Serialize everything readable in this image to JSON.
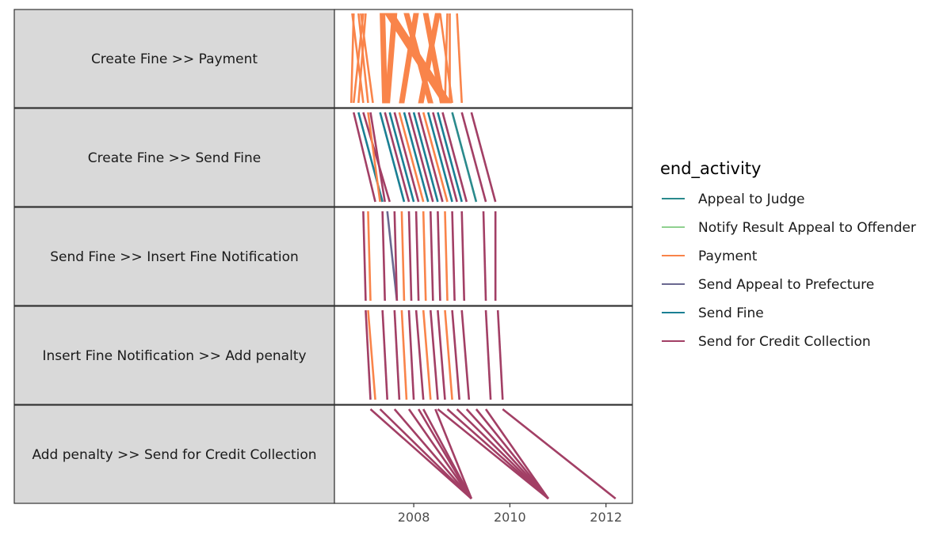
{
  "chart_data": {
    "type": "line",
    "chart_kind": "dotted-chart-segments",
    "title": "",
    "xlabel": "",
    "ylabel": "",
    "xlim": [
      2006.35,
      2012.55
    ],
    "x_ticks": [
      2008,
      2010,
      2012
    ],
    "x_tick_labels": [
      "2008",
      "2010",
      "2012"
    ],
    "grid": false,
    "facet_position": "left",
    "legend": {
      "title": "end_activity",
      "position": "right",
      "entries": [
        {
          "label": "Appeal to Judge",
          "color": "#2a8a8c"
        },
        {
          "label": "Notify Result Appeal to Offender",
          "color": "#8fd18f"
        },
        {
          "label": "Payment",
          "color": "#f9844a"
        },
        {
          "label": "Send Appeal to Prefecture",
          "color": "#6a6890"
        },
        {
          "label": "Send Fine",
          "color": "#1a7f94"
        },
        {
          "label": "Send for Credit Collection",
          "color": "#a23f65"
        }
      ]
    },
    "facets": [
      {
        "label": "Create Fine >> Payment",
        "segments": [
          {
            "x0": 2006.75,
            "x1": 2006.7,
            "series": "Payment"
          },
          {
            "x0": 2006.85,
            "x1": 2007.05,
            "series": "Payment"
          },
          {
            "x0": 2006.9,
            "x1": 2007.15,
            "series": "Payment"
          },
          {
            "x0": 2006.95,
            "x1": 2006.75,
            "series": "Payment"
          },
          {
            "x0": 2007.0,
            "x1": 2006.85,
            "series": "Payment"
          },
          {
            "x0": 2006.72,
            "x1": 2006.95,
            "series": "Payment"
          },
          {
            "x0": 2007.3,
            "x1": 2007.35,
            "series": "Payment",
            "dense": true
          },
          {
            "x0": 2007.4,
            "x1": 2008.6,
            "series": "Payment",
            "dense": true
          },
          {
            "x0": 2007.55,
            "x1": 2007.4,
            "series": "Payment",
            "dense": true
          },
          {
            "x0": 2007.8,
            "x1": 2008.3,
            "series": "Payment",
            "dense": true
          },
          {
            "x0": 2008.0,
            "x1": 2007.7,
            "series": "Payment",
            "dense": true
          },
          {
            "x0": 2008.2,
            "x1": 2008.55,
            "series": "Payment",
            "dense": true
          },
          {
            "x0": 2008.45,
            "x1": 2008.1,
            "series": "Payment",
            "dense": true
          },
          {
            "x0": 2008.55,
            "x1": 2008.8,
            "series": "Payment"
          },
          {
            "x0": 2008.7,
            "x1": 2008.65,
            "series": "Payment"
          },
          {
            "x0": 2008.75,
            "x1": 2008.75,
            "series": "Payment"
          },
          {
            "x0": 2008.9,
            "x1": 2009.0,
            "series": "Payment"
          }
        ]
      },
      {
        "label": "Create Fine >> Send Fine",
        "segments": [
          {
            "x0": 2006.75,
            "x1": 2007.2,
            "series": "Send for Credit Collection"
          },
          {
            "x0": 2006.85,
            "x1": 2007.35,
            "series": "Send Fine"
          },
          {
            "x0": 2006.95,
            "x1": 2007.5,
            "series": "Send for Credit Collection"
          },
          {
            "x0": 2007.05,
            "x1": 2007.3,
            "series": "Payment"
          },
          {
            "x0": 2007.1,
            "x1": 2007.4,
            "series": "Send for Credit Collection"
          },
          {
            "x0": 2007.3,
            "x1": 2007.8,
            "series": "Send Fine"
          },
          {
            "x0": 2007.4,
            "x1": 2007.9,
            "series": "Send for Credit Collection"
          },
          {
            "x0": 2007.5,
            "x1": 2008.0,
            "series": "Send Fine"
          },
          {
            "x0": 2007.6,
            "x1": 2008.1,
            "series": "Send for Credit Collection"
          },
          {
            "x0": 2007.7,
            "x1": 2008.2,
            "series": "Payment"
          },
          {
            "x0": 2007.8,
            "x1": 2008.3,
            "series": "Send Fine"
          },
          {
            "x0": 2007.9,
            "x1": 2008.4,
            "series": "Send for Credit Collection"
          },
          {
            "x0": 2008.0,
            "x1": 2008.5,
            "series": "Send Fine"
          },
          {
            "x0": 2008.1,
            "x1": 2008.6,
            "series": "Send for Credit Collection"
          },
          {
            "x0": 2008.2,
            "x1": 2008.7,
            "series": "Payment"
          },
          {
            "x0": 2008.3,
            "x1": 2008.8,
            "series": "Send Fine"
          },
          {
            "x0": 2008.4,
            "x1": 2008.9,
            "series": "Send for Credit Collection"
          },
          {
            "x0": 2008.5,
            "x1": 2009.0,
            "series": "Send Fine"
          },
          {
            "x0": 2008.6,
            "x1": 2009.1,
            "series": "Send for Credit Collection"
          },
          {
            "x0": 2008.8,
            "x1": 2009.3,
            "series": "Appeal to Judge"
          },
          {
            "x0": 2009.0,
            "x1": 2009.5,
            "series": "Send for Credit Collection"
          },
          {
            "x0": 2009.2,
            "x1": 2009.7,
            "series": "Send for Credit Collection"
          }
        ]
      },
      {
        "label": "Send Fine >> Insert Fine Notification",
        "segments": [
          {
            "x0": 2006.95,
            "x1": 2007.0,
            "series": "Send for Credit Collection"
          },
          {
            "x0": 2007.05,
            "x1": 2007.1,
            "series": "Payment"
          },
          {
            "x0": 2007.35,
            "x1": 2007.4,
            "series": "Send for Credit Collection"
          },
          {
            "x0": 2007.45,
            "x1": 2007.65,
            "series": "Send Appeal to Prefecture"
          },
          {
            "x0": 2007.6,
            "x1": 2007.65,
            "series": "Send for Credit Collection"
          },
          {
            "x0": 2007.75,
            "x1": 2007.8,
            "series": "Payment"
          },
          {
            "x0": 2007.9,
            "x1": 2007.95,
            "series": "Send for Credit Collection"
          },
          {
            "x0": 2008.05,
            "x1": 2008.1,
            "series": "Send for Credit Collection"
          },
          {
            "x0": 2008.2,
            "x1": 2008.25,
            "series": "Payment"
          },
          {
            "x0": 2008.35,
            "x1": 2008.4,
            "series": "Send for Credit Collection"
          },
          {
            "x0": 2008.5,
            "x1": 2008.55,
            "series": "Send for Credit Collection"
          },
          {
            "x0": 2008.65,
            "x1": 2008.7,
            "series": "Payment"
          },
          {
            "x0": 2008.8,
            "x1": 2008.85,
            "series": "Send for Credit Collection"
          },
          {
            "x0": 2009.0,
            "x1": 2009.05,
            "series": "Send for Credit Collection"
          },
          {
            "x0": 2009.45,
            "x1": 2009.5,
            "series": "Send for Credit Collection"
          },
          {
            "x0": 2009.7,
            "x1": 2009.7,
            "series": "Send for Credit Collection"
          }
        ]
      },
      {
        "label": "Insert Fine Notification >> Add penalty",
        "segments": [
          {
            "x0": 2007.0,
            "x1": 2007.1,
            "series": "Send for Credit Collection"
          },
          {
            "x0": 2007.05,
            "x1": 2007.2,
            "series": "Payment"
          },
          {
            "x0": 2007.35,
            "x1": 2007.45,
            "series": "Send for Credit Collection"
          },
          {
            "x0": 2007.6,
            "x1": 2007.7,
            "series": "Send for Credit Collection"
          },
          {
            "x0": 2007.75,
            "x1": 2007.85,
            "series": "Payment"
          },
          {
            "x0": 2007.9,
            "x1": 2008.0,
            "series": "Send for Credit Collection"
          },
          {
            "x0": 2008.05,
            "x1": 2008.2,
            "series": "Send for Credit Collection"
          },
          {
            "x0": 2008.2,
            "x1": 2008.35,
            "series": "Payment"
          },
          {
            "x0": 2008.35,
            "x1": 2008.5,
            "series": "Send for Credit Collection"
          },
          {
            "x0": 2008.5,
            "x1": 2008.65,
            "series": "Send for Credit Collection"
          },
          {
            "x0": 2008.65,
            "x1": 2008.8,
            "series": "Payment"
          },
          {
            "x0": 2008.8,
            "x1": 2008.95,
            "series": "Send for Credit Collection"
          },
          {
            "x0": 2009.0,
            "x1": 2009.15,
            "series": "Send for Credit Collection"
          },
          {
            "x0": 2009.5,
            "x1": 2009.6,
            "series": "Send for Credit Collection"
          },
          {
            "x0": 2009.75,
            "x1": 2009.85,
            "series": "Send for Credit Collection"
          }
        ]
      },
      {
        "label": "Add penalty >> Send for Credit Collection",
        "segments": [
          {
            "x0": 2007.1,
            "x1": 2009.2,
            "series": "Send for Credit Collection"
          },
          {
            "x0": 2007.3,
            "x1": 2009.2,
            "series": "Send for Credit Collection"
          },
          {
            "x0": 2007.6,
            "x1": 2009.2,
            "series": "Send for Credit Collection"
          },
          {
            "x0": 2007.9,
            "x1": 2009.2,
            "series": "Send for Credit Collection"
          },
          {
            "x0": 2008.2,
            "x1": 2009.2,
            "series": "Send for Credit Collection"
          },
          {
            "x0": 2008.45,
            "x1": 2009.2,
            "series": "Send for Credit Collection"
          },
          {
            "x0": 2008.1,
            "x1": 2009.2,
            "series": "Send for Credit Collection"
          },
          {
            "x0": 2008.5,
            "x1": 2010.8,
            "series": "Send for Credit Collection"
          },
          {
            "x0": 2008.7,
            "x1": 2010.8,
            "series": "Send for Credit Collection"
          },
          {
            "x0": 2008.9,
            "x1": 2010.8,
            "series": "Send for Credit Collection"
          },
          {
            "x0": 2009.1,
            "x1": 2010.8,
            "series": "Send for Credit Collection"
          },
          {
            "x0": 2009.3,
            "x1": 2010.8,
            "series": "Send for Credit Collection"
          },
          {
            "x0": 2009.5,
            "x1": 2010.8,
            "series": "Send for Credit Collection"
          },
          {
            "x0": 2009.85,
            "x1": 2012.2,
            "series": "Send for Credit Collection"
          }
        ]
      }
    ]
  }
}
